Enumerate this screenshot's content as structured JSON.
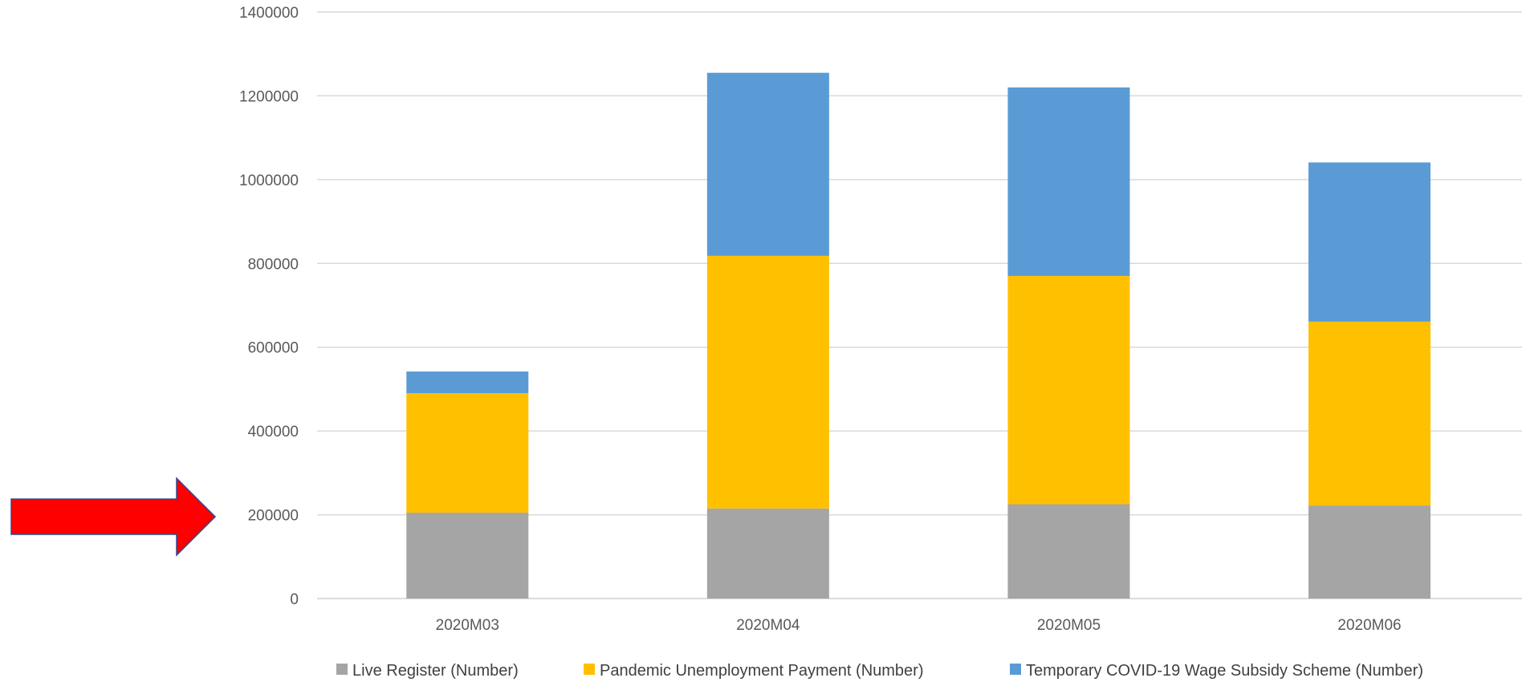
{
  "chart_data": {
    "type": "bar",
    "stacked": true,
    "categories": [
      "2020M03",
      "2020M04",
      "2020M05",
      "2020M06"
    ],
    "series": [
      {
        "name": "Live Register (Number)",
        "color": "#a5a5a5",
        "values": [
          205000,
          215000,
          225000,
          222000
        ]
      },
      {
        "name": "Pandemic Unemployment Payment (Number)",
        "color": "#ffc000",
        "values": [
          285000,
          603000,
          545000,
          439000
        ]
      },
      {
        "name": "Temporary COVID-19 Wage Subsidy Scheme (Number)",
        "color": "#5b9bd5",
        "values": [
          52000,
          437000,
          450000,
          380000
        ]
      }
    ],
    "ylim": [
      0,
      1400000
    ],
    "yticks": [
      "0",
      "200000",
      "400000",
      "600000",
      "800000",
      "1000000",
      "1200000",
      "1400000"
    ],
    "grid": true,
    "legend_position": "bottom",
    "title": "",
    "xlabel": "",
    "ylabel": ""
  },
  "annotation": {
    "shape": "right-arrow",
    "fill_color": "#ff0000",
    "stroke_color": "#2e4a8f",
    "points_to_y_value": 200000
  }
}
